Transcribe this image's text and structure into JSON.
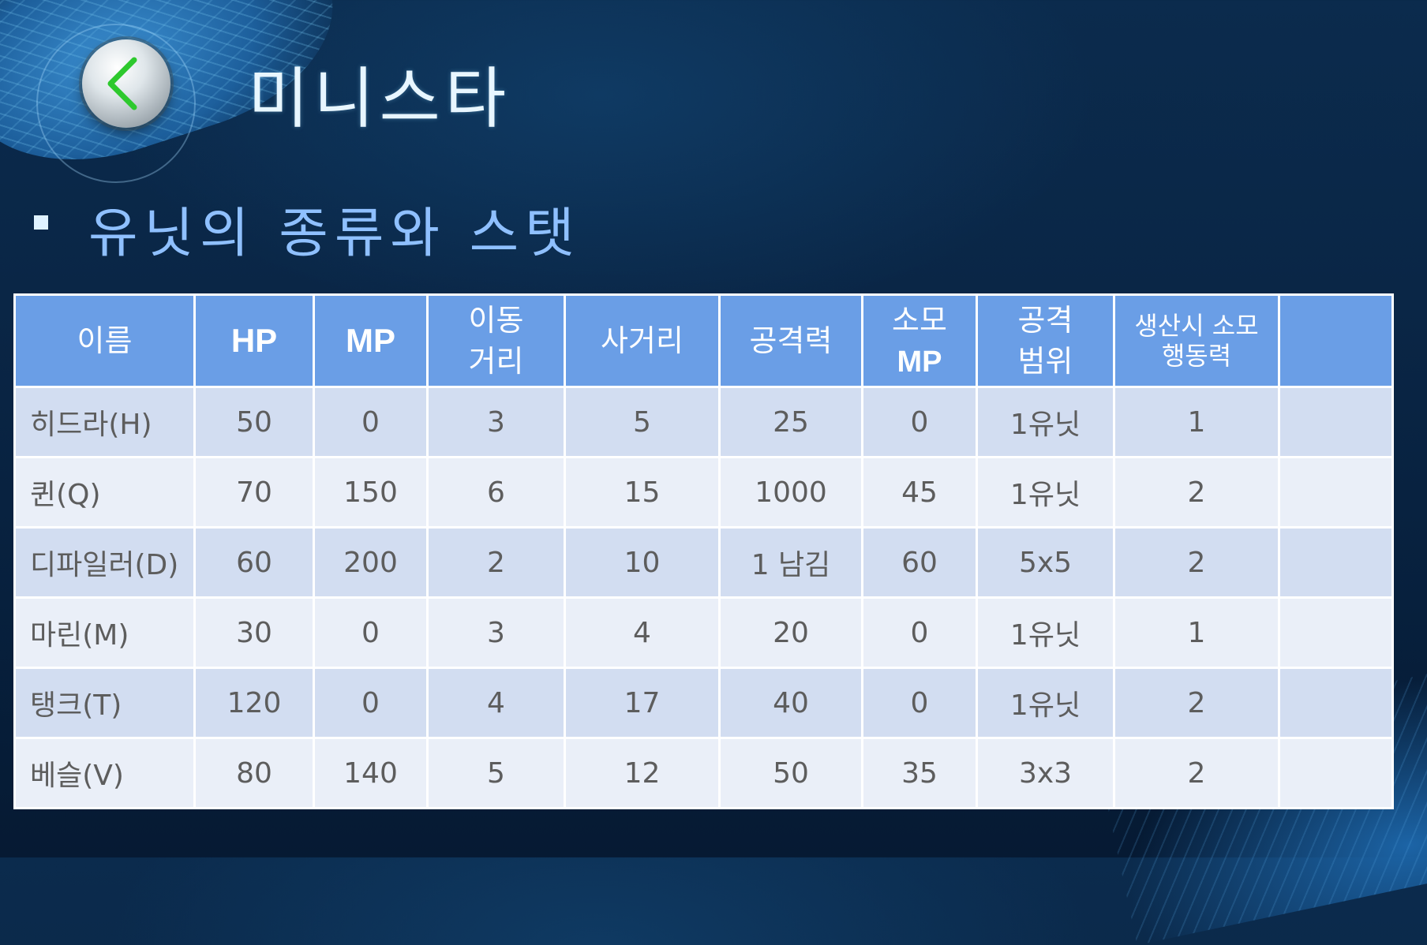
{
  "slide": {
    "title": "미니스타",
    "subtitle": "유닛의 종류와 스탯"
  },
  "table": {
    "headers": {
      "name": "이름",
      "hp": "HP",
      "mp": "MP",
      "move_1": "이동",
      "move_2": "거리",
      "range": "사거리",
      "attack": "공격력",
      "cost_1": "소모",
      "cost_2": "MP",
      "area_1": "공격",
      "area_2": "범위",
      "prod_1": "생산시 소모",
      "prod_2": "행동력",
      "extra": ""
    },
    "rows": [
      {
        "name": "히드라(H)",
        "hp": "50",
        "mp": "0",
        "move": "3",
        "range": "5",
        "attack": "25",
        "cost_mp": "0",
        "area": "1유닛",
        "prod": "1",
        "extra": ""
      },
      {
        "name": "퀸(Q)",
        "hp": "70",
        "mp": "150",
        "move": "6",
        "range": "15",
        "attack": "1000",
        "cost_mp": "45",
        "area": "1유닛",
        "prod": "2",
        "extra": ""
      },
      {
        "name": "디파일러(D)",
        "hp": "60",
        "mp": "200",
        "move": "2",
        "range": "10",
        "attack": "1 남김",
        "cost_mp": "60",
        "area": "5x5",
        "prod": "2",
        "extra": ""
      },
      {
        "name": "마린(M)",
        "hp": "30",
        "mp": "0",
        "move": "3",
        "range": "4",
        "attack": "20",
        "cost_mp": "0",
        "area": "1유닛",
        "prod": "1",
        "extra": ""
      },
      {
        "name": "탱크(T)",
        "hp": "120",
        "mp": "0",
        "move": "4",
        "range": "17",
        "attack": "40",
        "cost_mp": "0",
        "area": "1유닛",
        "prod": "2",
        "extra": ""
      },
      {
        "name": "베슬(V)",
        "hp": "80",
        "mp": "140",
        "move": "5",
        "range": "12",
        "attack": "50",
        "cost_mp": "35",
        "area": "3x3",
        "prod": "2",
        "extra": ""
      }
    ]
  },
  "icons": {
    "back": "chevron-left-icon",
    "bullet": "square-bullet-icon"
  },
  "colors": {
    "header_bg": "#6a9ee6",
    "row_odd": "#d2ddf1",
    "row_even": "#eaeff8",
    "title": "#e8f6ff",
    "subtitle": "#8fc0ff",
    "chevron": "#33cc33"
  }
}
